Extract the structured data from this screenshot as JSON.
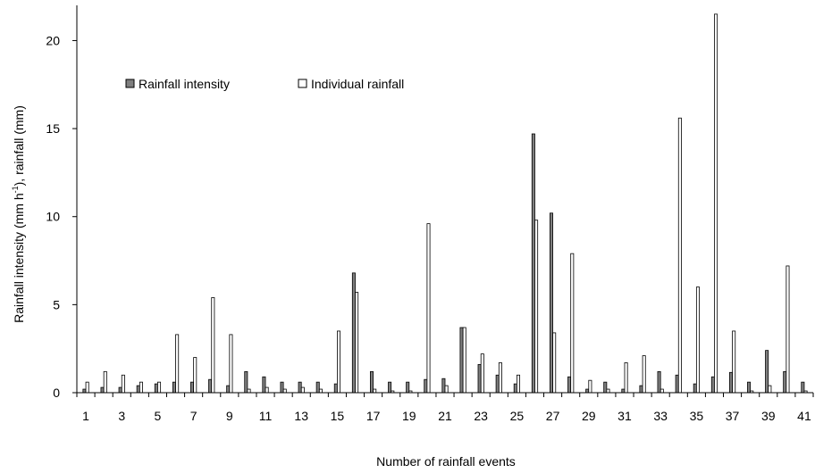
{
  "chart_data": {
    "type": "bar",
    "xlabel": "Number of rainfall events",
    "ylabel_main": "Rainfall intensity (mm h",
    "ylabel_sup": "-1",
    "ylabel_tail": "), rainfall (mm)",
    "ylim": [
      0,
      22
    ],
    "yticks": [
      "0",
      "5",
      "10",
      "15",
      "20"
    ],
    "categories": [
      1,
      2,
      3,
      4,
      5,
      6,
      7,
      8,
      9,
      10,
      11,
      12,
      13,
      14,
      15,
      16,
      17,
      18,
      19,
      20,
      21,
      22,
      23,
      24,
      25,
      26,
      27,
      28,
      29,
      30,
      31,
      32,
      33,
      34,
      35,
      36,
      37,
      38,
      39,
      40,
      41
    ],
    "x_tick_labels": [
      "1",
      "3",
      "5",
      "7",
      "9",
      "11",
      "13",
      "15",
      "17",
      "19",
      "21",
      "23",
      "25",
      "27",
      "29",
      "31",
      "33",
      "35",
      "37",
      "39",
      "41"
    ],
    "legend_position": "top-left",
    "grid": false,
    "series": [
      {
        "name": "Rainfall intensity",
        "color": "#7f7f7f",
        "values": [
          0.2,
          0.3,
          0.3,
          0.4,
          0.5,
          0.6,
          0.6,
          0.75,
          0.4,
          1.2,
          0.9,
          0.6,
          0.6,
          0.6,
          0.5,
          6.8,
          1.2,
          0.6,
          0.6,
          0.75,
          0.8,
          3.7,
          1.6,
          1.0,
          0.5,
          14.7,
          10.2,
          0.9,
          0.2,
          0.6,
          0.2,
          0.4,
          1.2,
          1.0,
          0.5,
          0.9,
          1.15,
          0.6,
          2.4,
          1.2,
          0.6
        ]
      },
      {
        "name": "Individual rainfall",
        "color": "#ffffff",
        "values": [
          0.6,
          1.2,
          1.0,
          0.6,
          0.6,
          3.3,
          2.0,
          5.4,
          3.3,
          0.2,
          0.3,
          0.2,
          0.3,
          0.2,
          3.5,
          5.7,
          0.2,
          0.1,
          0.1,
          9.6,
          0.4,
          3.7,
          2.2,
          1.7,
          1.0,
          9.8,
          3.4,
          7.9,
          0.7,
          0.2,
          1.7,
          2.1,
          0.2,
          15.6,
          6.0,
          21.5,
          3.5,
          0.1,
          0.4,
          7.2,
          0.1
        ]
      }
    ]
  }
}
